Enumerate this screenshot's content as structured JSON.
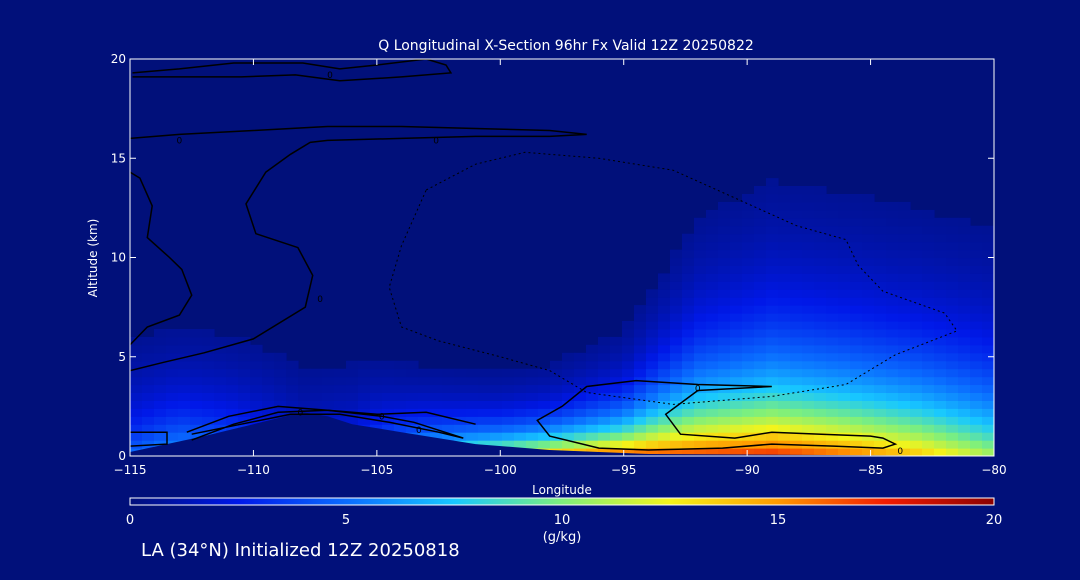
{
  "chart_data": [
    {
      "type": "heatmap",
      "title": "Q Longitudinal X-Section 96hr  Fx Valid 12Z 20250822",
      "xlabel": "Longitude",
      "ylabel": "Altitude (km)",
      "xlim": [
        -115,
        -80
      ],
      "ylim": [
        0,
        20
      ],
      "x_ticks": [
        -115,
        -110,
        -105,
        -100,
        -95,
        -90,
        -85,
        -80
      ],
      "x_tick_labels": [
        "−115",
        "−110",
        "−105",
        "−100",
        "−95",
        "−90",
        "−85",
        "−80"
      ],
      "y_ticks": [
        0,
        5,
        10,
        15,
        20
      ],
      "y_tick_labels": [
        "0",
        "5",
        "10",
        "15",
        "20"
      ],
      "grid": false,
      "field": [
        {
          "lon": -115,
          "surface_q": 5,
          "moist_top_km": 6.5
        },
        {
          "lon": -113,
          "surface_q": 7,
          "moist_top_km": 6.3
        },
        {
          "lon": -111,
          "surface_q": 6,
          "moist_top_km": 6.3
        },
        {
          "lon": -108,
          "surface_q": 3,
          "moist_top_km": 6.5
        },
        {
          "lon": -106,
          "surface_q": 4,
          "moist_top_km": 5.8
        },
        {
          "lon": -104,
          "surface_q": 8,
          "moist_top_km": 4.3
        },
        {
          "lon": -102,
          "surface_q": 11,
          "moist_top_km": 3.6
        },
        {
          "lon": -100,
          "surface_q": 13,
          "moist_top_km": 3.3
        },
        {
          "lon": -98,
          "surface_q": 15,
          "moist_top_km": 3.4
        },
        {
          "lon": -95,
          "surface_q": 17,
          "moist_top_km": 4.5
        },
        {
          "lon": -92,
          "surface_q": 17,
          "moist_top_km": 8.5
        },
        {
          "lon": -89,
          "surface_q": 17.5,
          "moist_top_km": 9.8
        },
        {
          "lon": -86,
          "surface_q": 16,
          "moist_top_km": 9.6
        },
        {
          "lon": -83,
          "surface_q": 14,
          "moist_top_km": 9.4
        },
        {
          "lon": -80,
          "surface_q": 11,
          "moist_top_km": 9.3
        }
      ],
      "terrain": [
        {
          "lon": -115,
          "alt_km": 0.2
        },
        {
          "lon": -112,
          "alt_km": 1.0
        },
        {
          "lon": -110,
          "alt_km": 1.6
        },
        {
          "lon": -108,
          "alt_km": 2.2
        },
        {
          "lon": -107,
          "alt_km": 2.0
        },
        {
          "lon": -106,
          "alt_km": 1.6
        },
        {
          "lon": -104,
          "alt_km": 1.2
        },
        {
          "lon": -101,
          "alt_km": 0.6
        },
        {
          "lon": -98,
          "alt_km": 0.3
        },
        {
          "lon": -94,
          "alt_km": 0.1
        },
        {
          "lon": -80,
          "alt_km": 0.0
        }
      ],
      "contour_label": "0",
      "contours": [
        {
          "style": "solid",
          "points": [
            [
              -114.9,
              19.3
            ],
            [
              -113,
              19.5
            ],
            [
              -110.8,
              19.8
            ],
            [
              -108,
              19.8
            ],
            [
              -106.5,
              19.5
            ],
            [
              -105,
              19.7
            ],
            [
              -103,
              20
            ],
            [
              -102.2,
              19.7
            ],
            [
              -102,
              19.3
            ],
            [
              -104,
              19.1
            ],
            [
              -106.5,
              18.9
            ],
            [
              -108.3,
              19.2
            ],
            [
              -110.5,
              19.1
            ],
            [
              -113,
              19.1
            ],
            [
              -114.9,
              19.1
            ]
          ]
        },
        {
          "style": "solid",
          "points": [
            [
              -115,
              16
            ],
            [
              -113,
              16.2
            ],
            [
              -110,
              16.4
            ],
            [
              -107,
              16.6
            ],
            [
              -104,
              16.6
            ],
            [
              -101,
              16.5
            ],
            [
              -98,
              16.4
            ],
            [
              -96.5,
              16.2
            ],
            [
              -98,
              16.1
            ],
            [
              -101,
              16.1
            ],
            [
              -104,
              16
            ],
            [
              -107,
              15.9
            ],
            [
              -107.7,
              15.8
            ],
            [
              -108.5,
              15.2
            ],
            [
              -109.5,
              14.3
            ],
            [
              -110.3,
              12.7
            ],
            [
              -109.9,
              11.2
            ],
            [
              -108.2,
              10.5
            ],
            [
              -107.6,
              9.1
            ],
            [
              -107.9,
              7.5
            ],
            [
              -110,
              5.9
            ],
            [
              -112,
              5.2
            ],
            [
              -113.7,
              4.7
            ],
            [
              -115,
              4.3
            ]
          ]
        },
        {
          "style": "solid",
          "points": [
            [
              -115,
              14.3
            ],
            [
              -114.6,
              14
            ],
            [
              -114.1,
              12.6
            ],
            [
              -114.3,
              11
            ],
            [
              -113.4,
              10
            ],
            [
              -112.9,
              9.4
            ],
            [
              -112.5,
              8.1
            ],
            [
              -113,
              7.1
            ],
            [
              -114.3,
              6.5
            ],
            [
              -115,
              5.6
            ]
          ]
        },
        {
          "style": "solid",
          "points": [
            [
              -115,
              1.2
            ],
            [
              -113.5,
              1.2
            ],
            [
              -113.5,
              0.6
            ],
            [
              -115,
              0.5
            ]
          ]
        },
        {
          "style": "solid",
          "points": [
            [
              -112.5,
              0.8
            ],
            [
              -110.8,
              1.6
            ],
            [
              -109,
              2.2
            ],
            [
              -107,
              2.3
            ],
            [
              -104.8,
              2
            ],
            [
              -103.5,
              1.7
            ],
            [
              -102.5,
              1.3
            ],
            [
              -101.5,
              0.9
            ],
            [
              -102.5,
              1.2
            ],
            [
              -104.5,
              1.7
            ],
            [
              -106.5,
              2.1
            ],
            [
              -108.5,
              2.1
            ],
            [
              -110.5,
              1.6
            ],
            [
              -112.5,
              1.1
            ]
          ]
        },
        {
          "style": "solid",
          "points": [
            [
              -112.7,
              1.2
            ],
            [
              -111,
              2
            ],
            [
              -109,
              2.5
            ],
            [
              -107,
              2.3
            ],
            [
              -105,
              2.1
            ],
            [
              -103,
              2.2
            ],
            [
              -101,
              1.6
            ]
          ]
        },
        {
          "style": "solid",
          "points": [
            [
              -97.5,
              2.5
            ],
            [
              -96.5,
              3.5
            ],
            [
              -94.5,
              3.8
            ],
            [
              -92,
              3.6
            ],
            [
              -89,
              3.5
            ],
            [
              -92,
              3.3
            ],
            [
              -93.3,
              2.1
            ],
            [
              -92.7,
              1.1
            ],
            [
              -90.5,
              0.9
            ],
            [
              -89,
              1.2
            ],
            [
              -87,
              1.1
            ],
            [
              -85,
              1
            ],
            [
              -84.5,
              0.9
            ],
            [
              -84,
              0.6
            ],
            [
              -84.5,
              0.4
            ],
            [
              -86.5,
              0.5
            ],
            [
              -89,
              0.6
            ],
            [
              -91,
              0.4
            ],
            [
              -94,
              0.3
            ],
            [
              -96,
              0.4
            ],
            [
              -98,
              1
            ],
            [
              -98.5,
              1.8
            ],
            [
              -97.5,
              2.5
            ]
          ]
        },
        {
          "style": "dotted",
          "points": [
            [
              -103,
              13.4
            ],
            [
              -101,
              14.7
            ],
            [
              -99,
              15.3
            ],
            [
              -96,
              15
            ],
            [
              -93,
              14.4
            ],
            [
              -88,
              11.6
            ],
            [
              -86,
              10.9
            ],
            [
              -85.5,
              9.6
            ],
            [
              -84.5,
              8.3
            ],
            [
              -82,
              7.2
            ],
            [
              -81.5,
              6.3
            ],
            [
              -84,
              5.1
            ],
            [
              -86,
              3.6
            ],
            [
              -89,
              3
            ],
            [
              -93,
              2.6
            ],
            [
              -96.5,
              3.2
            ],
            [
              -98,
              4.3
            ],
            [
              -100,
              5
            ],
            [
              -102.5,
              5.8
            ],
            [
              -104,
              6.5
            ],
            [
              -104.5,
              8.5
            ],
            [
              -104,
              10.6
            ],
            [
              -103,
              13.4
            ]
          ]
        }
      ],
      "colorbar": {
        "min": 0,
        "max": 20,
        "ticks": [
          "0",
          "5",
          "10",
          "15",
          "20"
        ],
        "label": "(g/kg)",
        "stops": [
          "#01107a",
          "#0018e8",
          "#0a6cff",
          "#18c8ff",
          "#7ef07c",
          "#f4f41a",
          "#ff9a00",
          "#f21a00",
          "#8a0000"
        ]
      }
    }
  ],
  "footer": {
    "caption": "LA (34°N) Initialized 12Z 20250818"
  }
}
